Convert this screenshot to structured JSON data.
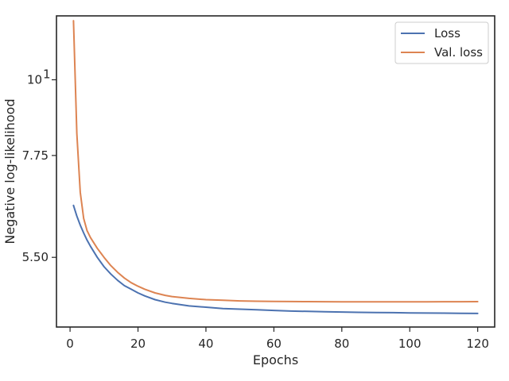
{
  "chart_data": {
    "type": "line",
    "xlabel": "Epochs",
    "ylabel": "Negative log-likelihood",
    "yscale": "log",
    "xlim": [
      -4,
      125
    ],
    "ylim": [
      4.35,
      12.4
    ],
    "grid": false,
    "legend_position": "top-right",
    "x_ticks": [
      {
        "value": 0,
        "label": "0"
      },
      {
        "value": 20,
        "label": "20"
      },
      {
        "value": 40,
        "label": "40"
      },
      {
        "value": 60,
        "label": "60"
      },
      {
        "value": 80,
        "label": "80"
      },
      {
        "value": 100,
        "label": "100"
      },
      {
        "value": 120,
        "label": "120"
      }
    ],
    "y_ticks": [
      {
        "value": 5.5,
        "label": "5.50",
        "sup": ""
      },
      {
        "value": 7.75,
        "label": "7.75",
        "sup": ""
      },
      {
        "value": 10,
        "label": "10",
        "sup": "1"
      }
    ],
    "series": [
      {
        "name": "Loss",
        "color": "#4c72b0",
        "x": [
          1,
          2,
          3,
          4,
          5,
          6,
          8,
          10,
          12,
          14,
          16,
          18,
          20,
          22,
          25,
          28,
          30,
          35,
          40,
          45,
          50,
          55,
          60,
          65,
          70,
          75,
          80,
          85,
          90,
          95,
          100,
          105,
          110,
          115,
          120
        ],
        "y": [
          6.55,
          6.32,
          6.13,
          5.97,
          5.83,
          5.71,
          5.5,
          5.33,
          5.2,
          5.09,
          5.0,
          4.94,
          4.88,
          4.83,
          4.77,
          4.73,
          4.71,
          4.67,
          4.65,
          4.63,
          4.62,
          4.61,
          4.6,
          4.59,
          4.585,
          4.58,
          4.575,
          4.57,
          4.568,
          4.565,
          4.562,
          4.56,
          4.558,
          4.556,
          4.553
        ]
      },
      {
        "name": "Val. loss",
        "color": "#dd8452",
        "x": [
          1,
          2,
          3,
          4,
          5,
          6,
          8,
          10,
          12,
          14,
          16,
          18,
          20,
          22,
          25,
          28,
          30,
          35,
          40,
          45,
          50,
          55,
          60,
          65,
          70,
          75,
          80,
          85,
          90,
          95,
          100,
          105,
          110,
          115,
          120
        ],
        "y": [
          12.2,
          8.35,
          6.85,
          6.27,
          6.02,
          5.88,
          5.67,
          5.5,
          5.35,
          5.23,
          5.13,
          5.05,
          4.99,
          4.94,
          4.88,
          4.84,
          4.82,
          4.79,
          4.77,
          4.76,
          4.75,
          4.745,
          4.742,
          4.74,
          4.738,
          4.737,
          4.736,
          4.735,
          4.735,
          4.735,
          4.736,
          4.736,
          4.737,
          4.737,
          4.738
        ]
      }
    ]
  }
}
